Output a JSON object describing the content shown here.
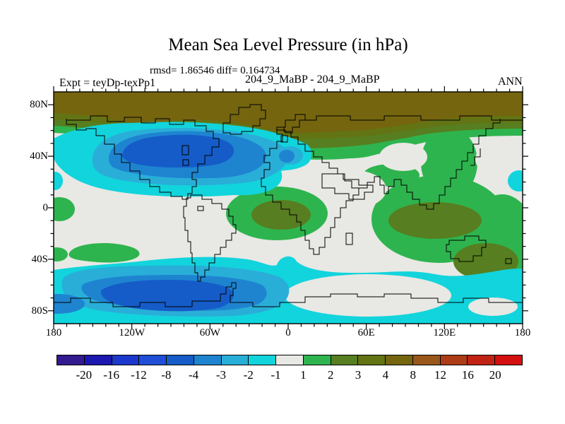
{
  "header": {
    "title": "Mean Sea Level Pressure (in hPa)",
    "stats_line": "rmsd= 1.86546 diff= 0.164734",
    "comparison": "204_9_MaBP - 204_9_MaBP",
    "experiment": "Expt = teyDp-texPp1",
    "season": "ANN"
  },
  "axes": {
    "lat_ticks": [
      "80N",
      "40N",
      "0",
      "40S",
      "80S"
    ],
    "lon_ticks": [
      "180",
      "120W",
      "60W",
      "0",
      "60E",
      "120E",
      "180"
    ]
  },
  "colorbar": {
    "levels": [
      "-20",
      "-16",
      "-12",
      "-8",
      "-4",
      "-3",
      "-2",
      "-1",
      "1",
      "2",
      "3",
      "4",
      "8",
      "12",
      "16",
      "20"
    ],
    "colors": [
      "#341a8f",
      "#1c17ae",
      "#1c38cc",
      "#1e4fd6",
      "#155cc8",
      "#1e84d0",
      "#29aed8",
      "#12d4dc",
      "#e8e8e4",
      "#2eb44e",
      "#577e20",
      "#637414",
      "#75650f",
      "#9a571a",
      "#ad3c16",
      "#c02314",
      "#d40f10"
    ]
  },
  "chart_data": {
    "type": "heatmap",
    "subtype": "filled-contour world map, cylindrical equirectangular projection",
    "title": "Mean Sea Level Pressure (in hPa)",
    "subtitle": "rmsd= 1.86546 diff= 0.164734",
    "left_label": "Expt = teyDp-texPp1",
    "center_label": "204_9_MaBP - 204_9_MaBP",
    "right_label": "ANN",
    "stats": {
      "rmsd": 1.86546,
      "diff": 0.164734
    },
    "x_axis": {
      "label": "longitude",
      "tick_labels": [
        "180",
        "120W",
        "60W",
        "0",
        "60E",
        "120E",
        "180"
      ],
      "range_deg": [
        -180,
        180
      ],
      "minor_tick_deg": 10
    },
    "y_axis": {
      "label": "latitude",
      "tick_labels": [
        "80N",
        "40N",
        "0",
        "40S",
        "80S"
      ],
      "range_deg": [
        -90,
        90
      ],
      "minor_tick_deg": 10
    },
    "contour_levels_hpa": [
      -20,
      -16,
      -12,
      -8,
      -4,
      -3,
      -2,
      -1,
      1,
      2,
      3,
      4,
      8,
      12,
      16,
      20
    ],
    "fill_colors": [
      "#341a8f",
      "#1c17ae",
      "#1c38cc",
      "#1e4fd6",
      "#155cc8",
      "#1e84d0",
      "#29aed8",
      "#12d4dc",
      "#e8e8e4",
      "#2eb44e",
      "#577e20",
      "#637414",
      "#75650f",
      "#9a571a",
      "#ad3c16",
      "#c02314",
      "#d40f10"
    ],
    "legend_position": "horizontal label bar below map",
    "grid": "off",
    "features": [
      {
        "region": "Arctic band poleward of ~70N, all longitudes",
        "value_hpa": "+4 to +8"
      },
      {
        "region": "North Pacific low centered ~45N, 150W",
        "value_hpa": "-4 to -8"
      },
      {
        "region": "North Atlantic tongue ~40-50N extending to ~0E",
        "value_hpa": "-1 to -3"
      },
      {
        "region": "Eurasia / Africa / Indian Ocean positive area",
        "value_hpa": "+1 to +3"
      },
      {
        "region": "tropical South America blob with core",
        "value_hpa": "+1 to +3"
      },
      {
        "region": "Southern Ocean circumpolar band ~55-75S",
        "value_hpa": "-1 to -2"
      },
      {
        "region": "South Pacific Southern Ocean low centered ~65S, 120W",
        "value_hpa": "-4 to -8"
      },
      {
        "region": "mid-latitude remainder (white/gray)",
        "value_hpa": "-1 to +1"
      }
    ]
  }
}
